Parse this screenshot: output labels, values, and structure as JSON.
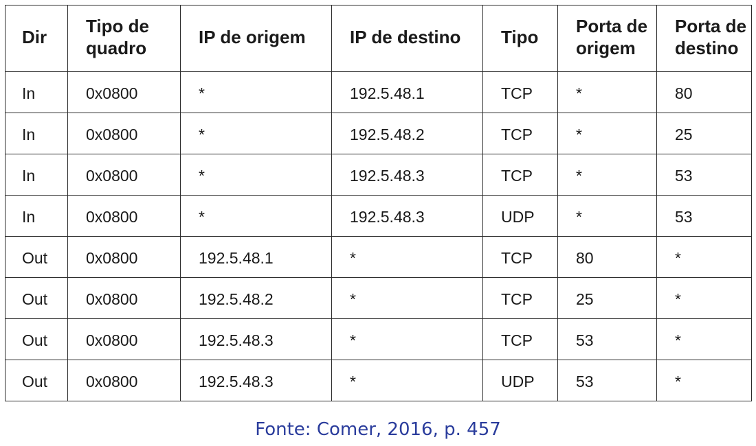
{
  "table": {
    "headers": [
      "Dir",
      "Tipo de quadro",
      "IP de origem",
      "IP de destino",
      "Tipo",
      "Porta de origem",
      "Porta de destino"
    ],
    "rows": [
      [
        "In",
        "0x0800",
        "*",
        "192.5.48.1",
        "TCP",
        "*",
        "80"
      ],
      [
        "In",
        "0x0800",
        "*",
        "192.5.48.2",
        "TCP",
        "*",
        "25"
      ],
      [
        "In",
        "0x0800",
        "*",
        "192.5.48.3",
        "TCP",
        "*",
        "53"
      ],
      [
        "In",
        "0x0800",
        "*",
        "192.5.48.3",
        "UDP",
        "*",
        "53"
      ],
      [
        "Out",
        "0x0800",
        "192.5.48.1",
        "*",
        "TCP",
        "80",
        "*"
      ],
      [
        "Out",
        "0x0800",
        "192.5.48.2",
        "*",
        "TCP",
        "25",
        "*"
      ],
      [
        "Out",
        "0x0800",
        "192.5.48.3",
        "*",
        "TCP",
        "53",
        "*"
      ],
      [
        "Out",
        "0x0800",
        "192.5.48.3",
        "*",
        "UDP",
        "53",
        "*"
      ]
    ]
  },
  "caption": "Fonte: Comer, 2016, p. 457",
  "colors": {
    "caption": "#2a3c9c",
    "border": "#2b2b2b",
    "text": "#1a1a1a"
  }
}
